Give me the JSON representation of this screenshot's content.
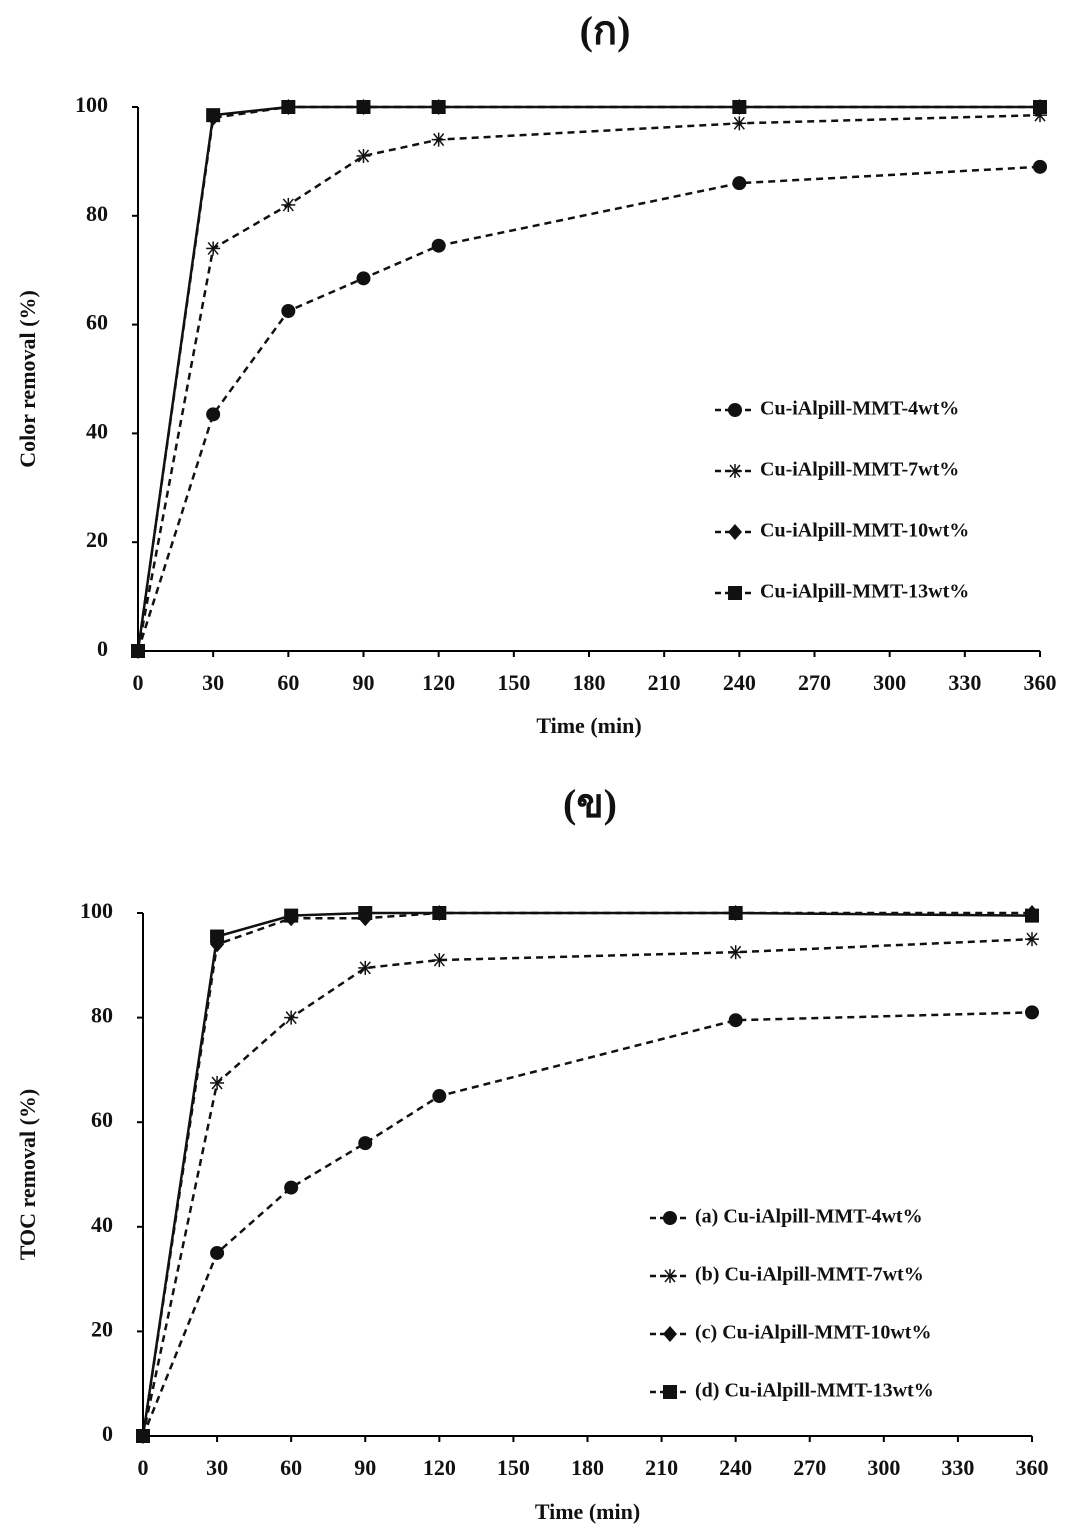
{
  "chart_data": [
    {
      "type": "line",
      "title": "(ก)",
      "xlabel": "Time (min)",
      "ylabel": "Color removal (%)",
      "x": [
        0,
        30,
        60,
        90,
        120,
        240,
        360
      ],
      "xlim": [
        0,
        360
      ],
      "xticks": [
        0,
        30,
        60,
        90,
        120,
        150,
        180,
        210,
        240,
        270,
        300,
        330,
        360
      ],
      "ylim": [
        0,
        100
      ],
      "yticks": [
        0,
        20,
        40,
        60,
        80,
        100
      ],
      "series": [
        {
          "name": "Cu-iAlpill-MMT-4wt%",
          "color": "#111111",
          "marker": "circle",
          "linestyle": "dashed",
          "values": [
            0,
            43.5,
            62.5,
            68.5,
            74.5,
            86,
            89
          ]
        },
        {
          "name": "Cu-iAlpill-MMT-7wt%",
          "color": "#111111",
          "marker": "asterisk",
          "linestyle": "dashed",
          "values": [
            0,
            74,
            82,
            91,
            94,
            97,
            98.5
          ]
        },
        {
          "name": "Cu-iAlpill-MMT-10wt%",
          "color": "#111111",
          "marker": "diamond",
          "linestyle": "dashed",
          "values": [
            0,
            98,
            100,
            100,
            100,
            100,
            100
          ]
        },
        {
          "name": "Cu-iAlpill-MMT-13wt%",
          "color": "#111111",
          "marker": "square",
          "linestyle": "solid",
          "values": [
            0,
            98.5,
            100,
            100,
            100,
            100,
            100
          ]
        }
      ]
    },
    {
      "type": "line",
      "title": "(ข)",
      "xlabel": "Time (min)",
      "ylabel": "TOC removal (%)",
      "x": [
        0,
        30,
        60,
        90,
        120,
        240,
        360
      ],
      "xlim": [
        0,
        360
      ],
      "xticks": [
        0,
        30,
        60,
        90,
        120,
        150,
        180,
        210,
        240,
        270,
        300,
        330,
        360
      ],
      "ylim": [
        0,
        100
      ],
      "yticks": [
        0,
        20,
        40,
        60,
        80,
        100
      ],
      "series": [
        {
          "name": "(a) Cu-iAlpill-MMT-4wt%",
          "color": "#111111",
          "marker": "circle",
          "linestyle": "dashed",
          "values": [
            0,
            35,
            47.5,
            56,
            65,
            79.5,
            81
          ]
        },
        {
          "name": "(b) Cu-iAlpill-MMT-7wt%",
          "color": "#111111",
          "marker": "asterisk",
          "linestyle": "dashed",
          "values": [
            0,
            67.5,
            80,
            89.5,
            91,
            92.5,
            95
          ]
        },
        {
          "name": "(c) Cu-iAlpill-MMT-10wt%",
          "color": "#111111",
          "marker": "diamond",
          "linestyle": "dashed",
          "values": [
            0,
            94,
            99,
            99,
            100,
            100,
            100
          ]
        },
        {
          "name": "(d) Cu-iAlpill-MMT-13wt%",
          "color": "#111111",
          "marker": "square",
          "linestyle": "solid",
          "values": [
            0,
            95.5,
            99.5,
            100,
            100,
            100,
            99.5
          ]
        }
      ]
    }
  ]
}
